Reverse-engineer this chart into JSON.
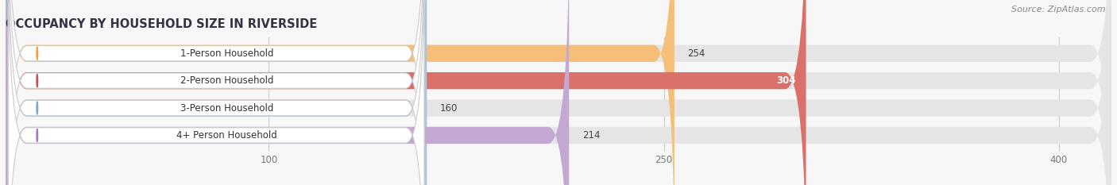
{
  "title": "OCCUPANCY BY HOUSEHOLD SIZE IN RIVERSIDE",
  "source": "Source: ZipAtlas.com",
  "categories": [
    "1-Person Household",
    "2-Person Household",
    "3-Person Household",
    "4+ Person Household"
  ],
  "values": [
    254,
    304,
    160,
    214
  ],
  "bar_colors": [
    "#F5BF7A",
    "#D9706A",
    "#A8C4E0",
    "#C4A8D4"
  ],
  "bar_edge_colors": [
    "#F5BF7A",
    "#D9706A",
    "#A8C4E0",
    "#C4A8D4"
  ],
  "label_dot_colors": [
    "#F5A030",
    "#C85050",
    "#7AAAC8",
    "#A878C0"
  ],
  "xlim_data": [
    0,
    420
  ],
  "xticks": [
    100,
    250,
    400
  ],
  "background_color": "#f7f7f7",
  "bar_bg_color": "#e5e5e5",
  "title_fontsize": 10.5,
  "source_fontsize": 8,
  "label_fontsize": 8.5,
  "value_fontsize": 8.5,
  "bar_height": 0.62,
  "bar_gap": 1.0
}
